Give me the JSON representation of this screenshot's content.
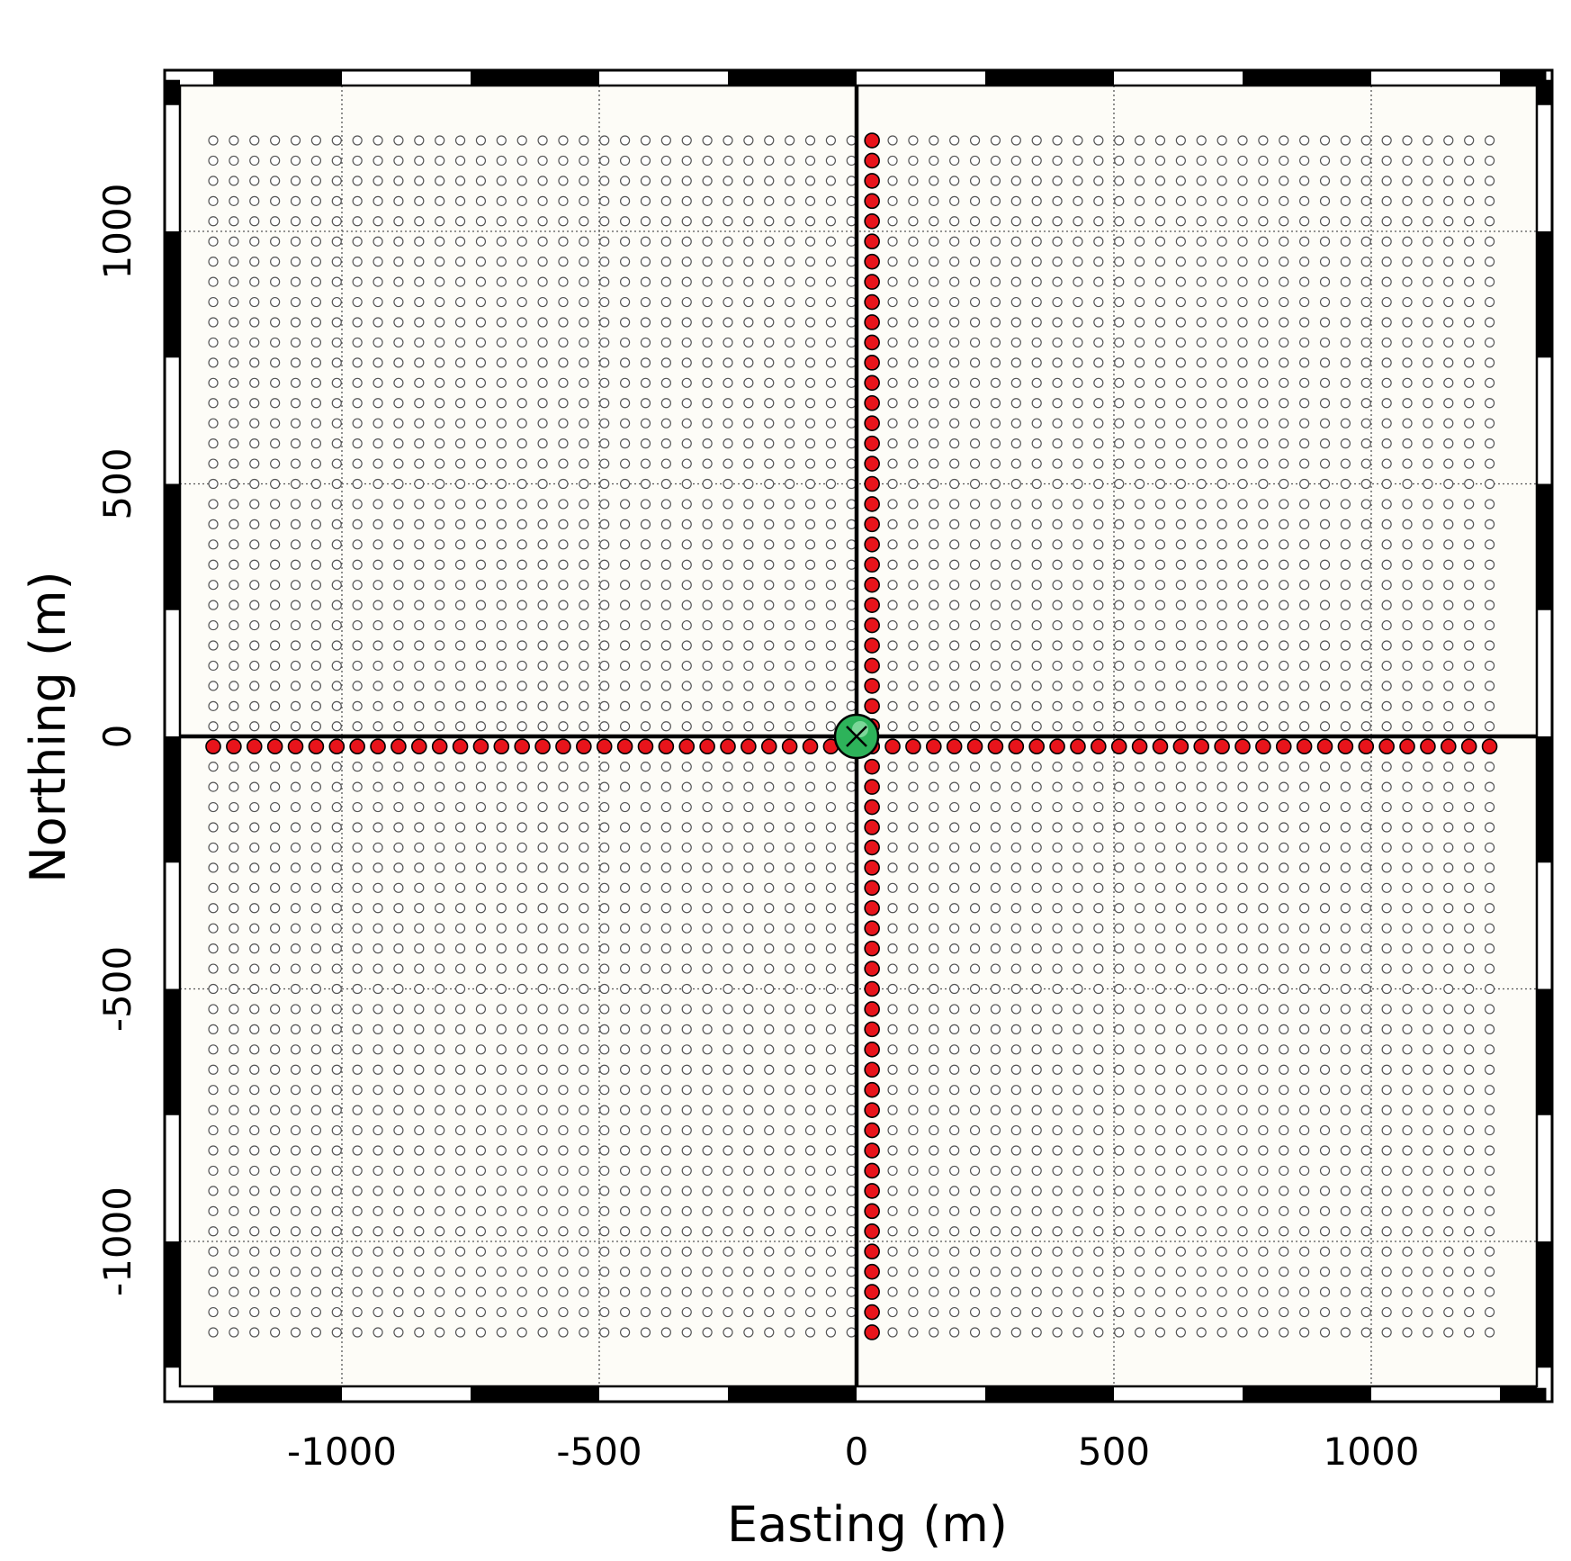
{
  "chart_data": {
    "type": "scatter",
    "xlabel": "Easting (m)",
    "ylabel": "Northing (m)",
    "xlim": [
      -1280,
      1340
    ],
    "ylim": [
      -1290,
      1300
    ],
    "x_ticks": [
      -1000,
      -500,
      0,
      500,
      1000
    ],
    "y_ticks": [
      -1000,
      -500,
      0,
      500,
      1000
    ],
    "x_tick_labels": [
      "-1000",
      "-500",
      "0",
      "500",
      "1000"
    ],
    "y_tick_labels": [
      "-1000",
      "-500",
      "0",
      "500",
      "1000"
    ],
    "grid": true,
    "frame": "checkered-border",
    "background_color": "#fdfcf7",
    "series": [
      {
        "marker": "open-circle",
        "color": "#ffffff",
        "edge_color": "#555555",
        "layout": "regular-grid",
        "x_range": [
          -1250,
          1250
        ],
        "y_range": [
          -1180,
          1180
        ],
        "spacing": 40
      },
      {
        "marker": "filled-circle",
        "color": "#e8141b",
        "edge_color": "#000000",
        "layout": "line",
        "direction": "east-west",
        "y": -20,
        "x_range": [
          -1250,
          1250
        ],
        "spacing": 40
      },
      {
        "marker": "filled-circle",
        "color": "#e8141b",
        "edge_color": "#000000",
        "layout": "line",
        "direction": "north-south",
        "x": 30,
        "y_range": [
          -1180,
          1180
        ],
        "spacing": 40
      }
    ],
    "center_marker": {
      "x": 0,
      "y": 0,
      "color": "#2db35a",
      "marker": "x"
    },
    "axes_cross": {
      "x": 0,
      "y": 0,
      "color": "#000000"
    }
  }
}
